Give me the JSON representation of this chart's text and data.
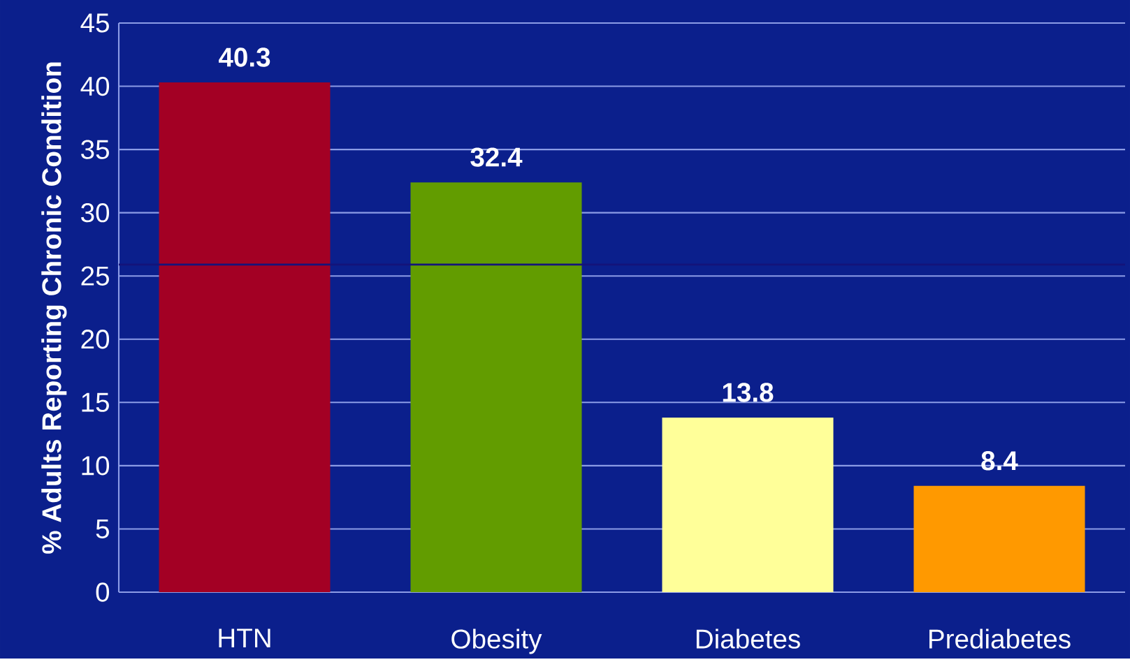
{
  "chart_data": {
    "type": "bar",
    "ylabel": "% Adults Reporting Chronic Condition",
    "categories": [
      "HTN",
      "Obesity",
      "Diabetes",
      "Prediabetes"
    ],
    "values": [
      40.3,
      32.4,
      13.8,
      8.4
    ],
    "colors": [
      "#a30024",
      "#629c00",
      "#ffff99",
      "#ff9900"
    ],
    "ylim": [
      0,
      45
    ],
    "yticks": [
      0,
      5,
      10,
      15,
      20,
      25,
      30,
      35,
      40,
      45
    ],
    "grid": "y",
    "data_labels": true,
    "ref_lines": [
      {
        "axis": "y",
        "value": 25.9,
        "color": "#14147a"
      }
    ]
  }
}
